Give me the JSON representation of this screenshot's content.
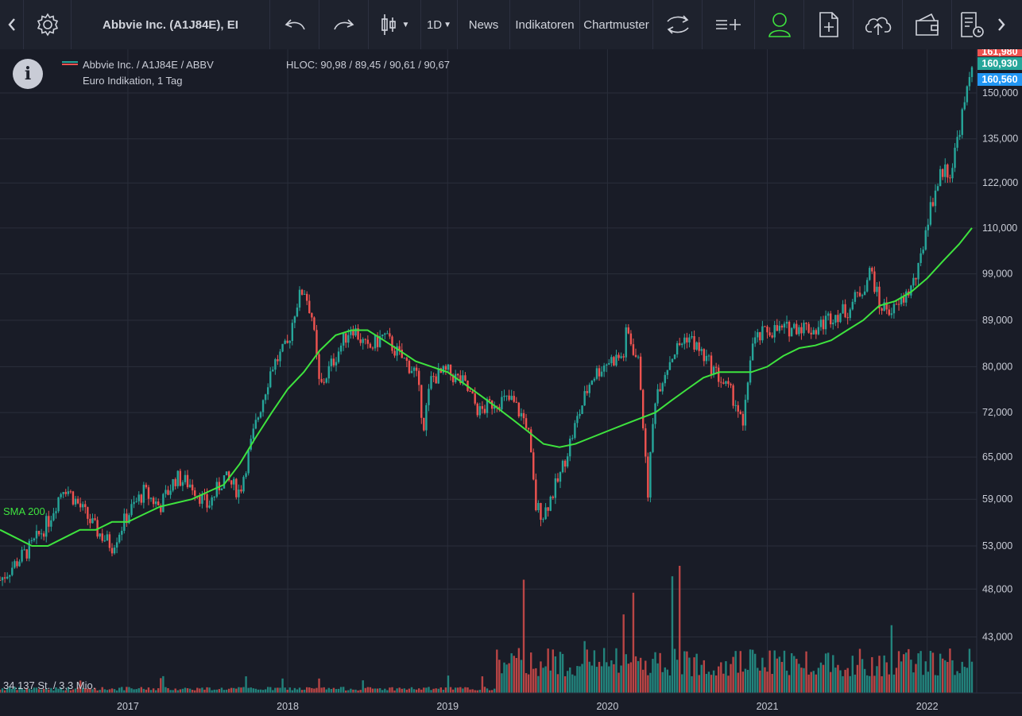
{
  "toolbar": {
    "title": "Abbvie Inc. (A1J84E), EI",
    "interval": "1D",
    "news": "News",
    "indicators": "Indikatoren",
    "patterns": "Chartmuster"
  },
  "legend": {
    "line1": "Abbvie Inc.  / A1J84E / ABBV",
    "line2": "Euro Indikation, 1 Tag",
    "hloc": "HLOC: 90,98 / 89,45 / 90,61 / 90,67"
  },
  "price_tags": {
    "top": "161,980",
    "last": "160,930",
    "prev": "160,560"
  },
  "labels": {
    "sma": "SMA 200",
    "volume": "34.137 St.  / 3,3 Mio."
  },
  "colors": {
    "up": "#26a69a",
    "down": "#ef5350",
    "sma": "#3ee33e",
    "tag_top": "#ef5350",
    "tag_last": "#26a69a",
    "tag_prev": "#2196f3"
  },
  "chart_data": {
    "type": "line",
    "y_ticks": [
      150,
      135,
      122,
      110,
      99,
      89,
      80,
      72,
      65,
      59,
      53,
      48,
      43
    ],
    "y_tick_labels": [
      "150,000",
      "135,000",
      "122,000",
      "110,000",
      "99,000",
      "89,000",
      "80,000",
      "72,000",
      "65,000",
      "59,000",
      "53,000",
      "48,000",
      "43,000"
    ],
    "x_ticks": [
      2017,
      2018,
      2019,
      2020,
      2021,
      2022
    ],
    "x_tick_labels": [
      "2017",
      "2018",
      "2019",
      "2020",
      "2021",
      "2022"
    ],
    "x_range": [
      2016.2,
      2022.28
    ],
    "y_scale": "log",
    "grid": true,
    "series": [
      {
        "name": "Abbvie Inc.  / A1J84E / ABBV",
        "x": [
          2016.2,
          2016.3,
          2016.4,
          2016.5,
          2016.6,
          2016.7,
          2016.8,
          2016.9,
          2017.0,
          2017.1,
          2017.2,
          2017.3,
          2017.4,
          2017.5,
          2017.6,
          2017.7,
          2017.8,
          2017.9,
          2018.0,
          2018.05,
          2018.1,
          2018.15,
          2018.2,
          2018.25,
          2018.3,
          2018.4,
          2018.5,
          2018.6,
          2018.7,
          2018.8,
          2018.85,
          2018.9,
          2019.0,
          2019.1,
          2019.2,
          2019.3,
          2019.4,
          2019.5,
          2019.55,
          2019.6,
          2019.7,
          2019.8,
          2019.9,
          2020.0,
          2020.1,
          2020.12,
          2020.2,
          2020.25,
          2020.3,
          2020.4,
          2020.5,
          2020.6,
          2020.7,
          2020.8,
          2020.85,
          2020.9,
          2021.0,
          2021.1,
          2021.2,
          2021.3,
          2021.4,
          2021.5,
          2021.6,
          2021.65,
          2021.7,
          2021.8,
          2021.9,
          2021.95,
          2022.0,
          2022.05,
          2022.1,
          2022.15,
          2022.2,
          2022.25,
          2022.28
        ],
        "values": [
          49,
          51,
          53,
          56,
          61,
          58,
          55,
          53,
          57,
          60,
          58,
          62,
          61,
          58,
          62,
          60,
          70,
          80,
          84,
          92,
          96,
          90,
          76,
          79,
          82,
          88,
          83,
          86,
          82,
          79,
          70,
          78,
          79,
          77,
          72,
          74,
          74,
          70,
          58,
          57,
          62,
          70,
          78,
          81,
          82,
          87,
          80,
          59,
          75,
          82,
          86,
          82,
          78,
          74,
          69,
          84,
          87,
          87,
          88,
          87,
          90,
          91,
          96,
          100,
          92,
          91,
          96,
          100,
          112,
          120,
          126,
          125,
          138,
          150,
          161
        ]
      },
      {
        "name": "SMA 200",
        "x": [
          2016.2,
          2016.3,
          2016.4,
          2016.5,
          2016.6,
          2016.7,
          2016.8,
          2016.9,
          2017.0,
          2017.1,
          2017.2,
          2017.3,
          2017.4,
          2017.5,
          2017.6,
          2017.7,
          2017.8,
          2017.9,
          2018.0,
          2018.1,
          2018.2,
          2018.3,
          2018.4,
          2018.5,
          2018.6,
          2018.7,
          2018.8,
          2018.9,
          2019.0,
          2019.1,
          2019.2,
          2019.3,
          2019.4,
          2019.5,
          2019.6,
          2019.7,
          2019.8,
          2019.9,
          2020.0,
          2020.1,
          2020.2,
          2020.3,
          2020.4,
          2020.5,
          2020.6,
          2020.7,
          2020.8,
          2020.9,
          2021.0,
          2021.1,
          2021.2,
          2021.3,
          2021.4,
          2021.5,
          2021.6,
          2021.7,
          2021.8,
          2021.9,
          2022.0,
          2022.1,
          2022.2,
          2022.28
        ],
        "values": [
          55,
          54,
          53,
          53,
          54,
          55,
          55,
          56,
          56,
          57,
          58,
          58.5,
          59,
          60,
          61,
          64,
          68,
          72,
          76,
          79,
          83,
          86,
          87,
          87,
          85,
          83,
          81,
          80,
          79,
          77,
          75,
          73,
          71,
          69,
          67,
          66.5,
          67,
          68,
          69,
          70,
          71,
          72,
          74,
          76,
          78,
          79,
          79,
          79,
          80,
          82,
          83.5,
          84,
          85,
          87,
          89,
          92,
          93,
          95,
          98,
          102,
          106,
          110
        ]
      }
    ]
  }
}
